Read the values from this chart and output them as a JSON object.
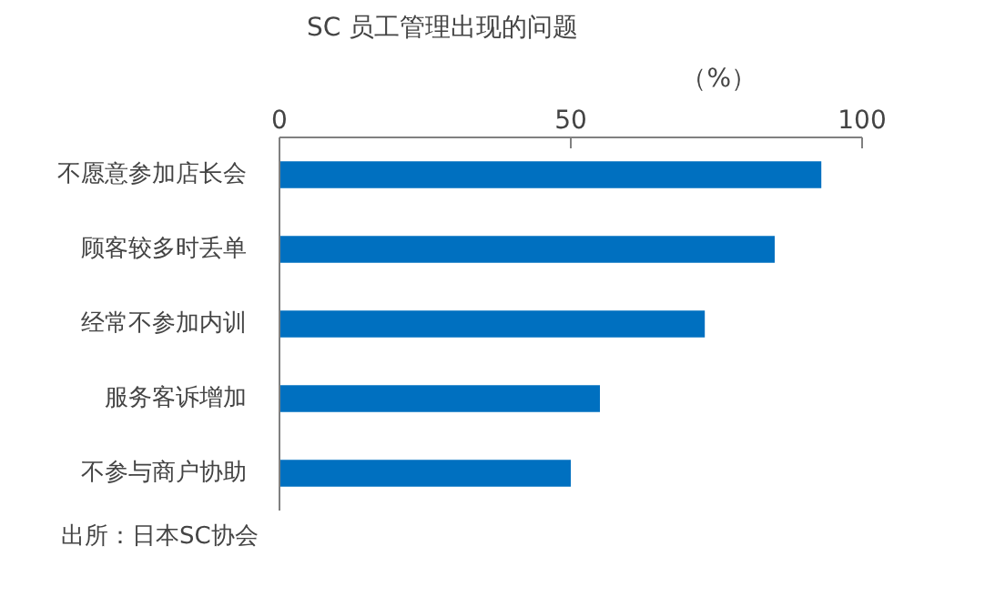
{
  "chart_data": {
    "type": "bar",
    "orientation": "horizontal",
    "title": "SC 员工管理出现的问题",
    "xlabel": "（%）",
    "categories": [
      "不愿意参加店长会",
      "顾客较多时丢单",
      "经常不参加内训",
      "服务客诉增加",
      "不参与商户协助"
    ],
    "values": [
      93,
      85,
      73,
      55,
      50
    ],
    "color": "#0070c0",
    "xlim": [
      0,
      100
    ],
    "xticks": [
      0,
      50,
      100
    ],
    "grid": false,
    "annotations": [
      "出所：日本SC协会"
    ]
  }
}
